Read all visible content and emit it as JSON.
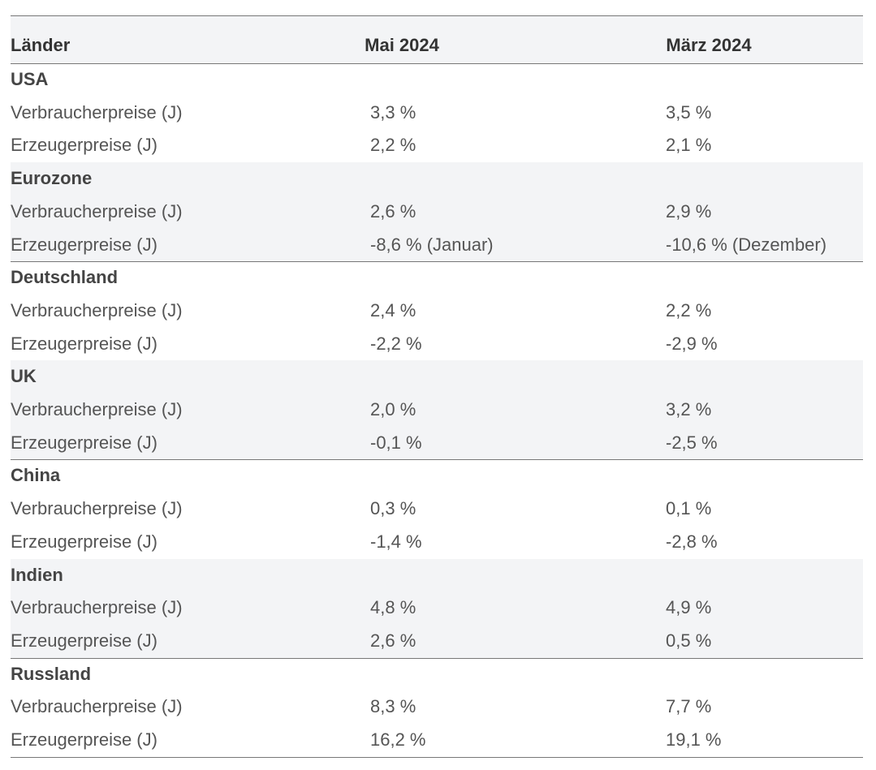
{
  "table": {
    "header": [
      "Länder",
      "Mai 2024",
      "März 2024"
    ],
    "groups": [
      {
        "name": "USA",
        "rows": [
          [
            "Verbraucherpreise (J)",
            "3,3 %",
            "3,5 %"
          ],
          [
            "Erzeugerpreise (J)",
            "2,2 %",
            "2,1 %"
          ]
        ]
      },
      {
        "name": "Eurozone",
        "rows": [
          [
            "Verbraucherpreise (J)",
            "2,6 %",
            "2,9 %"
          ],
          [
            "Erzeugerpreise (J)",
            "-8,6 % (Januar)",
            "-10,6 % (Dezember)"
          ]
        ]
      },
      {
        "name": "Deutschland",
        "rows": [
          [
            "Verbraucherpreise (J)",
            "2,4 %",
            "2,2 %"
          ],
          [
            "Erzeugerpreise (J)",
            "-2,2 %",
            "-2,9 %"
          ]
        ]
      },
      {
        "name": "UK",
        "rows": [
          [
            "Verbraucherpreise (J)",
            "2,0 %",
            "3,2 %"
          ],
          [
            "Erzeugerpreise (J)",
            "-0,1 %",
            "-2,5 %"
          ]
        ]
      },
      {
        "name": "China",
        "rows": [
          [
            "Verbraucherpreise (J)",
            "0,3 %",
            "0,1 %"
          ],
          [
            "Erzeugerpreise (J)",
            "-1,4 %",
            "-2,8 %"
          ]
        ]
      },
      {
        "name": "Indien",
        "rows": [
          [
            "Verbraucherpreise (J)",
            "4,8 %",
            "4,9 %"
          ],
          [
            "Erzeugerpreise (J)",
            "2,6 %",
            "0,5 %"
          ]
        ]
      },
      {
        "name": "Russland",
        "rows": [
          [
            "Verbraucherpreise (J)",
            "8,3 %",
            "7,7 %"
          ],
          [
            "Erzeugerpreise (J)",
            "16,2 %",
            "19,1 %"
          ]
        ]
      }
    ]
  }
}
